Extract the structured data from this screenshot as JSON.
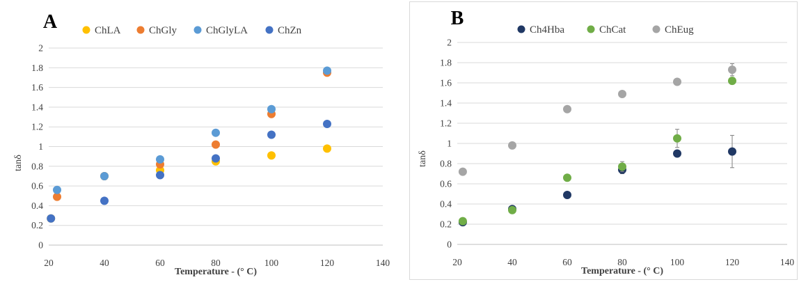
{
  "chart_data": [
    {
      "panel_label": "A",
      "type": "scatter",
      "xlabel": "Temperature - (° C)",
      "ylabel": "tanδ",
      "xlim": [
        20,
        140
      ],
      "ylim": [
        0,
        2
      ],
      "x_ticks": [
        20,
        40,
        60,
        80,
        100,
        120,
        140
      ],
      "x_tick_labels": [
        "20",
        "40",
        "60",
        "80",
        "100",
        "120",
        "140"
      ],
      "y_ticks": [
        0,
        0.2,
        0.4,
        0.6,
        0.8,
        1,
        1.2,
        1.4,
        1.6,
        1.8,
        2
      ],
      "y_tick_labels": [
        "0",
        "0.2",
        "0.4",
        "0.6",
        "0.8",
        "1",
        "1.2",
        "1.4",
        "1.6",
        "1.8",
        "2"
      ],
      "grid": true,
      "legend_position": "top",
      "series": [
        {
          "name": "ChLA",
          "color": "#FFC000",
          "points": [
            [
              20.8,
              0.27
            ],
            [
              40,
              0.7
            ],
            [
              60,
              0.76
            ],
            [
              80,
              0.85
            ],
            [
              100,
              0.91
            ],
            [
              120,
              0.98
            ]
          ]
        },
        {
          "name": "ChGly",
          "color": "#ED7D31",
          "points": [
            [
              23,
              0.49
            ],
            [
              40,
              0.7
            ],
            [
              60,
              0.82
            ],
            [
              80,
              1.02
            ],
            [
              100,
              1.33
            ],
            [
              120,
              1.75
            ]
          ]
        },
        {
          "name": "ChGlyLA",
          "color": "#5B9BD5",
          "points": [
            [
              23,
              0.56
            ],
            [
              40,
              0.7
            ],
            [
              60,
              0.87
            ],
            [
              80,
              1.14
            ],
            [
              100,
              1.38
            ],
            [
              120,
              1.77
            ]
          ]
        },
        {
          "name": "ChZn",
          "color": "#4472C4",
          "points": [
            [
              20.8,
              0.27
            ],
            [
              40,
              0.45
            ],
            [
              60,
              0.71
            ],
            [
              80,
              0.88
            ],
            [
              100,
              1.12
            ],
            [
              120,
              1.23
            ]
          ]
        }
      ]
    },
    {
      "panel_label": "B",
      "type": "scatter",
      "xlabel": "Temperature - (° C)",
      "ylabel": "tanδ",
      "xlim": [
        20,
        140
      ],
      "ylim": [
        0,
        2
      ],
      "x_ticks": [
        20,
        40,
        60,
        80,
        100,
        120,
        140
      ],
      "x_tick_labels": [
        "20",
        "40",
        "60",
        "80",
        "100",
        "120",
        "140"
      ],
      "y_ticks": [
        0,
        0.2,
        0.4,
        0.6,
        0.8,
        1,
        1.2,
        1.4,
        1.6,
        1.8,
        2
      ],
      "y_tick_labels": [
        "0",
        "0.2",
        "0.4",
        "0.6",
        "0.8",
        "1",
        "1.2",
        "1.4",
        "1.6",
        "1.8",
        "2"
      ],
      "grid": true,
      "legend_position": "top",
      "series": [
        {
          "name": "Ch4Hba",
          "color": "#203864",
          "points": [
            [
              22,
              0.22
            ],
            [
              40,
              0.35
            ],
            [
              60,
              0.49
            ],
            [
              80,
              0.74
            ],
            [
              100,
              0.9
            ],
            [
              120,
              0.92
            ]
          ],
          "errors": [
            0,
            0,
            0,
            0.04,
            0.02,
            0.16
          ]
        },
        {
          "name": "ChCat",
          "color": "#70AD47",
          "points": [
            [
              22,
              0.23
            ],
            [
              40,
              0.34
            ],
            [
              60,
              0.66
            ],
            [
              80,
              0.77
            ],
            [
              100,
              1.05
            ],
            [
              120,
              1.62
            ]
          ],
          "errors": [
            0,
            0,
            0,
            0.05,
            0.09,
            0.03
          ]
        },
        {
          "name": "ChEug",
          "color": "#A5A5A5",
          "points": [
            [
              22,
              0.72
            ],
            [
              40,
              0.98
            ],
            [
              60,
              1.34
            ],
            [
              80,
              1.49
            ],
            [
              100,
              1.61
            ],
            [
              120,
              1.73
            ]
          ],
          "errors": [
            0,
            0,
            0,
            0,
            0,
            0.06
          ]
        }
      ]
    }
  ]
}
